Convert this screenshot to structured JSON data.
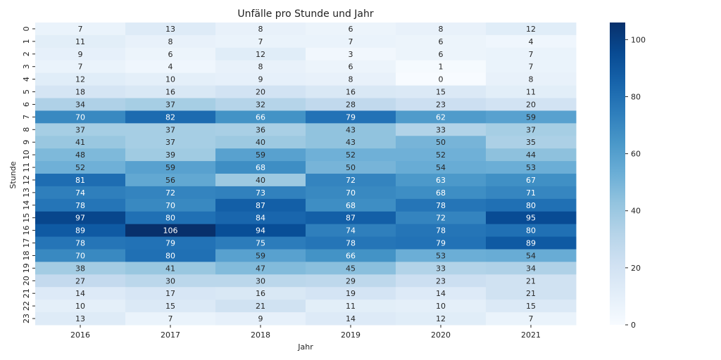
{
  "chart_data": {
    "type": "heatmap",
    "title": "Unfälle pro Stunde und Jahr",
    "xlabel": "Jahr",
    "ylabel": "Stunde",
    "x": [
      "2016",
      "2017",
      "2018",
      "2019",
      "2020",
      "2021"
    ],
    "y": [
      "0",
      "1",
      "2",
      "3",
      "4",
      "5",
      "6",
      "7",
      "8",
      "9",
      "10",
      "11",
      "12",
      "13",
      "14",
      "15",
      "16",
      "17",
      "18",
      "19",
      "20",
      "21",
      "22",
      "23"
    ],
    "values": [
      [
        7,
        13,
        8,
        6,
        8,
        12
      ],
      [
        11,
        8,
        7,
        7,
        6,
        4
      ],
      [
        9,
        6,
        12,
        3,
        6,
        7
      ],
      [
        7,
        4,
        8,
        6,
        1,
        7
      ],
      [
        12,
        10,
        9,
        8,
        0,
        8
      ],
      [
        18,
        16,
        20,
        16,
        15,
        11
      ],
      [
        34,
        37,
        32,
        28,
        23,
        20
      ],
      [
        70,
        82,
        66,
        79,
        62,
        59
      ],
      [
        37,
        37,
        36,
        43,
        33,
        37
      ],
      [
        41,
        37,
        40,
        43,
        50,
        35
      ],
      [
        48,
        39,
        59,
        52,
        52,
        44
      ],
      [
        52,
        59,
        68,
        50,
        54,
        53
      ],
      [
        81,
        56,
        40,
        72,
        63,
        67
      ],
      [
        74,
        72,
        73,
        70,
        68,
        71
      ],
      [
        78,
        70,
        87,
        68,
        78,
        80
      ],
      [
        97,
        80,
        84,
        87,
        72,
        95
      ],
      [
        89,
        106,
        94,
        74,
        78,
        80
      ],
      [
        78,
        79,
        75,
        78,
        79,
        89
      ],
      [
        70,
        80,
        59,
        66,
        53,
        54
      ],
      [
        38,
        41,
        47,
        45,
        33,
        34
      ],
      [
        27,
        30,
        30,
        29,
        23,
        21
      ],
      [
        14,
        17,
        16,
        19,
        14,
        21
      ],
      [
        10,
        15,
        21,
        11,
        10,
        15
      ],
      [
        13,
        7,
        9,
        14,
        12,
        7
      ]
    ],
    "colorscale": "Blues",
    "vmin": 0,
    "vmax": 106,
    "colorbar_ticks": [
      0,
      20,
      40,
      60,
      80,
      100
    ],
    "grid": false
  }
}
